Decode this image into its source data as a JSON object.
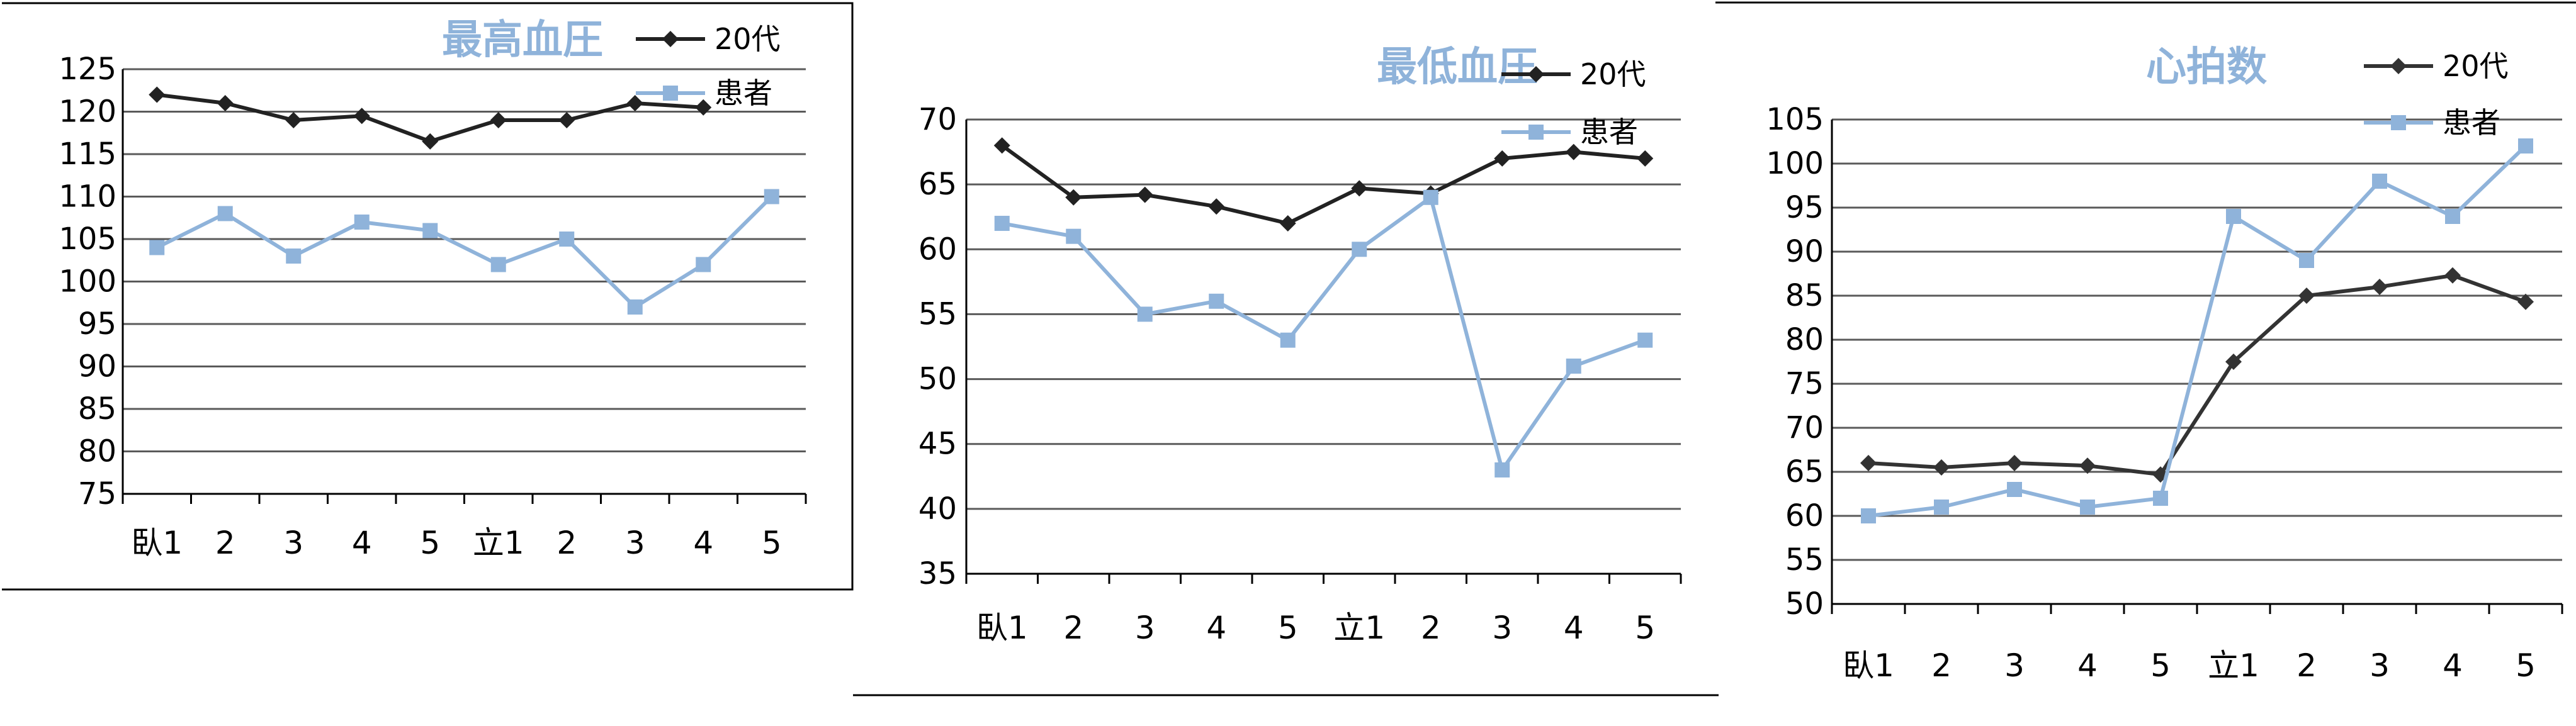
{
  "chart_data": [
    {
      "type": "line",
      "title": "最高血圧",
      "categories": [
        "臥1",
        "2",
        "3",
        "4",
        "5",
        "立1",
        "2",
        "3",
        "4",
        "5"
      ],
      "ylim": [
        75,
        125
      ],
      "yticks": [
        75,
        80,
        85,
        90,
        95,
        100,
        105,
        110,
        115,
        120,
        125
      ],
      "grid": true,
      "legend": "top-right",
      "series": [
        {
          "name": "20代",
          "color": "#222222",
          "marker": "diamond",
          "values": [
            122,
            121,
            119,
            119.5,
            116.5,
            119,
            119,
            121,
            120.5,
            null
          ]
        },
        {
          "name": "患者",
          "color": "#8fb3da",
          "marker": "square",
          "values": [
            104,
            108,
            103,
            107,
            106,
            102,
            105,
            97,
            102,
            110
          ]
        }
      ]
    },
    {
      "type": "line",
      "title": "最低血圧",
      "categories": [
        "臥1",
        "2",
        "3",
        "4",
        "5",
        "立1",
        "2",
        "3",
        "4",
        "5"
      ],
      "ylim": [
        35,
        70
      ],
      "yticks": [
        35,
        40,
        45,
        50,
        55,
        60,
        65,
        70
      ],
      "grid": true,
      "legend": "top-right",
      "series": [
        {
          "name": "20代",
          "color": "#222222",
          "marker": "diamond",
          "values": [
            68,
            64,
            64.2,
            63.3,
            62,
            64.7,
            64.3,
            67,
            67.5,
            67
          ]
        },
        {
          "name": "患者",
          "color": "#8fb3da",
          "marker": "square",
          "values": [
            62,
            61,
            55,
            56,
            53,
            60,
            64,
            43,
            51,
            53
          ]
        }
      ]
    },
    {
      "type": "line",
      "title": "心拍数",
      "categories": [
        "臥1",
        "2",
        "3",
        "4",
        "5",
        "立1",
        "2",
        "3",
        "4",
        "5"
      ],
      "ylim": [
        50,
        105
      ],
      "yticks": [
        50,
        55,
        60,
        65,
        70,
        75,
        80,
        85,
        90,
        95,
        100,
        105
      ],
      "grid": true,
      "legend": "top-right",
      "series": [
        {
          "name": "20代",
          "color": "#333333",
          "marker": "diamond",
          "values": [
            66,
            65.5,
            66,
            65.7,
            64.7,
            77.5,
            85,
            86,
            87.3,
            84.3
          ]
        },
        {
          "name": "患者",
          "color": "#8fb3da",
          "marker": "square",
          "values": [
            60,
            61,
            63,
            61,
            62,
            94,
            89,
            98,
            94,
            102
          ]
        }
      ]
    }
  ]
}
